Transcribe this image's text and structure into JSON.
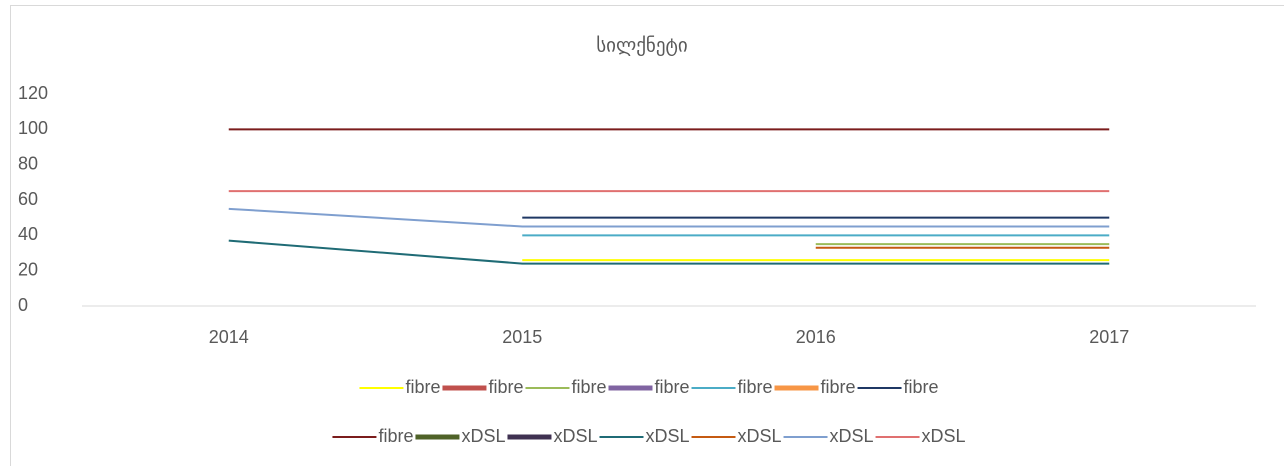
{
  "chart_data": {
    "type": "line",
    "title": "სილქნეტი",
    "categories": [
      "2014",
      "2015",
      "2016",
      "2017"
    ],
    "ylim": [
      0,
      120
    ],
    "yticks": [
      0,
      20,
      40,
      60,
      80,
      100,
      120
    ],
    "grid": false,
    "series": [
      {
        "name": "fibre",
        "color": "#ffff00",
        "width": 2,
        "values": [
          null,
          26,
          26,
          26
        ]
      },
      {
        "name": "fibre",
        "color": "#c0504d",
        "width": 5,
        "values": [
          null,
          null,
          null,
          null
        ]
      },
      {
        "name": "fibre",
        "color": "#9bbb59",
        "width": 2,
        "values": [
          null,
          null,
          35,
          35
        ]
      },
      {
        "name": "fibre",
        "color": "#8064a2",
        "width": 5,
        "values": [
          null,
          null,
          null,
          null
        ]
      },
      {
        "name": "fibre",
        "color": "#4bacc6",
        "width": 2,
        "values": [
          null,
          40,
          40,
          40
        ]
      },
      {
        "name": "fibre",
        "color": "#f79646",
        "width": 5,
        "values": [
          null,
          null,
          null,
          null
        ]
      },
      {
        "name": "fibre",
        "color": "#1f3864",
        "width": 2,
        "values": [
          null,
          50,
          50,
          50
        ]
      },
      {
        "name": "fibre",
        "color": "#7b1c1c",
        "width": 2,
        "values": [
          100,
          100,
          100,
          100
        ]
      },
      {
        "name": "xDSL",
        "color": "#4f6228",
        "width": 5,
        "values": [
          null,
          null,
          null,
          null
        ]
      },
      {
        "name": "xDSL",
        "color": "#3f3151",
        "width": 5,
        "values": [
          null,
          null,
          null,
          null
        ]
      },
      {
        "name": "xDSL",
        "color": "#1f6b75",
        "width": 2,
        "values": [
          37,
          24,
          24,
          24
        ]
      },
      {
        "name": "xDSL",
        "color": "#c55a11",
        "width": 2,
        "values": [
          null,
          null,
          33,
          33
        ]
      },
      {
        "name": "xDSL",
        "color": "#7f9fcf",
        "width": 2,
        "values": [
          55,
          45,
          45,
          45
        ]
      },
      {
        "name": "xDSL",
        "color": "#e07070",
        "width": 2,
        "values": [
          65,
          65,
          65,
          65
        ]
      }
    ]
  }
}
